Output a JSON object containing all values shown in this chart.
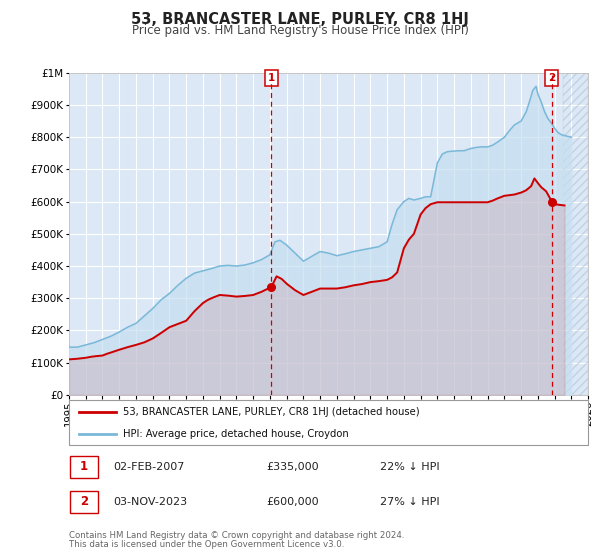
{
  "title": "53, BRANCASTER LANE, PURLEY, CR8 1HJ",
  "subtitle": "Price paid vs. HM Land Registry's House Price Index (HPI)",
  "title_fontsize": 10.5,
  "subtitle_fontsize": 8.5,
  "legend_line1": "53, BRANCASTER LANE, PURLEY, CR8 1HJ (detached house)",
  "legend_line2": "HPI: Average price, detached house, Croydon",
  "footnote1": "Contains HM Land Registry data © Crown copyright and database right 2024.",
  "footnote2": "This data is licensed under the Open Government Licence v3.0.",
  "annotation1": {
    "label": "1",
    "date_str": "02-FEB-2007",
    "price_str": "£335,000",
    "pct_str": "22% ↓ HPI",
    "x_val": 2007.09,
    "y_val": 335000
  },
  "annotation2": {
    "label": "2",
    "date_str": "03-NOV-2023",
    "price_str": "£600,000",
    "pct_str": "27% ↓ HPI",
    "x_val": 2023.84,
    "y_val": 600000
  },
  "vline1_x": 2007.09,
  "vline2_x": 2023.84,
  "hpi_color": "#7ab8d9",
  "hpi_fill_color": "#c5dff0",
  "price_color": "#cc0000",
  "dot_color": "#cc0000",
  "bg_color": "#dce8f5",
  "grid_color": "#ffffff",
  "hatch_color": "#c0c8d0",
  "ylim": [
    0,
    1000000
  ],
  "xlim": [
    1995,
    2026
  ],
  "hatch_start": 2024.5,
  "yticks": [
    0,
    100000,
    200000,
    300000,
    400000,
    500000,
    600000,
    700000,
    800000,
    900000,
    1000000
  ],
  "ytick_labels": [
    "£0",
    "£100K",
    "£200K",
    "£300K",
    "£400K",
    "£500K",
    "£600K",
    "£700K",
    "£800K",
    "£900K",
    "£1M"
  ],
  "xticks": [
    1995,
    1996,
    1997,
    1998,
    1999,
    2000,
    2001,
    2002,
    2003,
    2004,
    2005,
    2006,
    2007,
    2008,
    2009,
    2010,
    2011,
    2012,
    2013,
    2014,
    2015,
    2016,
    2017,
    2018,
    2019,
    2020,
    2021,
    2022,
    2023,
    2024,
    2025,
    2026
  ],
  "hpi_anchors": [
    [
      1995.0,
      148000
    ],
    [
      1995.5,
      148000
    ],
    [
      1996.0,
      155000
    ],
    [
      1996.5,
      162000
    ],
    [
      1997.0,
      172000
    ],
    [
      1997.5,
      182000
    ],
    [
      1998.0,
      195000
    ],
    [
      1998.5,
      210000
    ],
    [
      1999.0,
      222000
    ],
    [
      1999.5,
      245000
    ],
    [
      2000.0,
      268000
    ],
    [
      2000.5,
      295000
    ],
    [
      2001.0,
      315000
    ],
    [
      2001.5,
      340000
    ],
    [
      2002.0,
      362000
    ],
    [
      2002.5,
      378000
    ],
    [
      2003.0,
      385000
    ],
    [
      2003.5,
      392000
    ],
    [
      2004.0,
      400000
    ],
    [
      2004.5,
      402000
    ],
    [
      2005.0,
      400000
    ],
    [
      2005.5,
      403000
    ],
    [
      2006.0,
      410000
    ],
    [
      2006.5,
      420000
    ],
    [
      2007.0,
      435000
    ],
    [
      2007.3,
      475000
    ],
    [
      2007.6,
      480000
    ],
    [
      2008.0,
      465000
    ],
    [
      2008.5,
      440000
    ],
    [
      2009.0,
      415000
    ],
    [
      2009.5,
      430000
    ],
    [
      2010.0,
      445000
    ],
    [
      2010.5,
      440000
    ],
    [
      2011.0,
      432000
    ],
    [
      2011.5,
      438000
    ],
    [
      2012.0,
      445000
    ],
    [
      2012.5,
      450000
    ],
    [
      2013.0,
      455000
    ],
    [
      2013.5,
      460000
    ],
    [
      2014.0,
      475000
    ],
    [
      2014.3,
      530000
    ],
    [
      2014.6,
      575000
    ],
    [
      2015.0,
      600000
    ],
    [
      2015.3,
      610000
    ],
    [
      2015.6,
      605000
    ],
    [
      2016.0,
      610000
    ],
    [
      2016.3,
      615000
    ],
    [
      2016.6,
      615000
    ],
    [
      2017.0,
      720000
    ],
    [
      2017.3,
      748000
    ],
    [
      2017.6,
      755000
    ],
    [
      2018.0,
      757000
    ],
    [
      2018.3,
      758000
    ],
    [
      2018.6,
      758000
    ],
    [
      2019.0,
      765000
    ],
    [
      2019.3,
      768000
    ],
    [
      2019.6,
      770000
    ],
    [
      2020.0,
      770000
    ],
    [
      2020.3,
      775000
    ],
    [
      2020.6,
      785000
    ],
    [
      2021.0,
      800000
    ],
    [
      2021.3,
      820000
    ],
    [
      2021.6,
      838000
    ],
    [
      2022.0,
      850000
    ],
    [
      2022.3,
      878000
    ],
    [
      2022.5,
      910000
    ],
    [
      2022.7,
      945000
    ],
    [
      2022.9,
      958000
    ],
    [
      2023.0,
      935000
    ],
    [
      2023.2,
      910000
    ],
    [
      2023.4,
      880000
    ],
    [
      2023.6,
      858000
    ],
    [
      2023.8,
      845000
    ],
    [
      2024.0,
      828000
    ],
    [
      2024.2,
      815000
    ],
    [
      2024.4,
      808000
    ],
    [
      2024.6,
      805000
    ],
    [
      2025.0,
      800000
    ]
  ],
  "price_anchors": [
    [
      1995.0,
      110000
    ],
    [
      1995.5,
      112000
    ],
    [
      1996.0,
      115000
    ],
    [
      1996.3,
      118000
    ],
    [
      1996.6,
      120000
    ],
    [
      1997.0,
      122000
    ],
    [
      1997.3,
      128000
    ],
    [
      1997.6,
      133000
    ],
    [
      1998.0,
      140000
    ],
    [
      1998.5,
      148000
    ],
    [
      1999.0,
      155000
    ],
    [
      1999.5,
      163000
    ],
    [
      2000.0,
      175000
    ],
    [
      2000.5,
      192000
    ],
    [
      2001.0,
      210000
    ],
    [
      2001.5,
      220000
    ],
    [
      2002.0,
      230000
    ],
    [
      2002.5,
      260000
    ],
    [
      2003.0,
      285000
    ],
    [
      2003.3,
      295000
    ],
    [
      2003.6,
      302000
    ],
    [
      2004.0,
      310000
    ],
    [
      2004.5,
      308000
    ],
    [
      2005.0,
      305000
    ],
    [
      2005.5,
      307000
    ],
    [
      2006.0,
      310000
    ],
    [
      2006.5,
      320000
    ],
    [
      2007.09,
      335000
    ],
    [
      2007.4,
      368000
    ],
    [
      2007.7,
      360000
    ],
    [
      2008.0,
      345000
    ],
    [
      2008.5,
      325000
    ],
    [
      2009.0,
      310000
    ],
    [
      2009.5,
      320000
    ],
    [
      2010.0,
      330000
    ],
    [
      2010.5,
      330000
    ],
    [
      2011.0,
      330000
    ],
    [
      2011.5,
      334000
    ],
    [
      2012.0,
      340000
    ],
    [
      2012.5,
      344000
    ],
    [
      2013.0,
      350000
    ],
    [
      2013.5,
      353000
    ],
    [
      2014.0,
      357000
    ],
    [
      2014.3,
      365000
    ],
    [
      2014.6,
      380000
    ],
    [
      2015.0,
      455000
    ],
    [
      2015.3,
      482000
    ],
    [
      2015.6,
      500000
    ],
    [
      2016.0,
      560000
    ],
    [
      2016.3,
      580000
    ],
    [
      2016.6,
      592000
    ],
    [
      2017.0,
      598000
    ],
    [
      2017.5,
      598000
    ],
    [
      2018.0,
      598000
    ],
    [
      2018.5,
      598000
    ],
    [
      2019.0,
      598000
    ],
    [
      2019.5,
      598000
    ],
    [
      2020.0,
      598000
    ],
    [
      2020.3,
      603000
    ],
    [
      2020.6,
      610000
    ],
    [
      2021.0,
      618000
    ],
    [
      2021.3,
      620000
    ],
    [
      2021.6,
      622000
    ],
    [
      2022.0,
      628000
    ],
    [
      2022.3,
      635000
    ],
    [
      2022.6,
      648000
    ],
    [
      2022.8,
      672000
    ],
    [
      2023.0,
      658000
    ],
    [
      2023.2,
      645000
    ],
    [
      2023.5,
      632000
    ],
    [
      2023.84,
      600000
    ],
    [
      2024.0,
      592000
    ],
    [
      2024.3,
      590000
    ],
    [
      2024.6,
      588000
    ]
  ]
}
